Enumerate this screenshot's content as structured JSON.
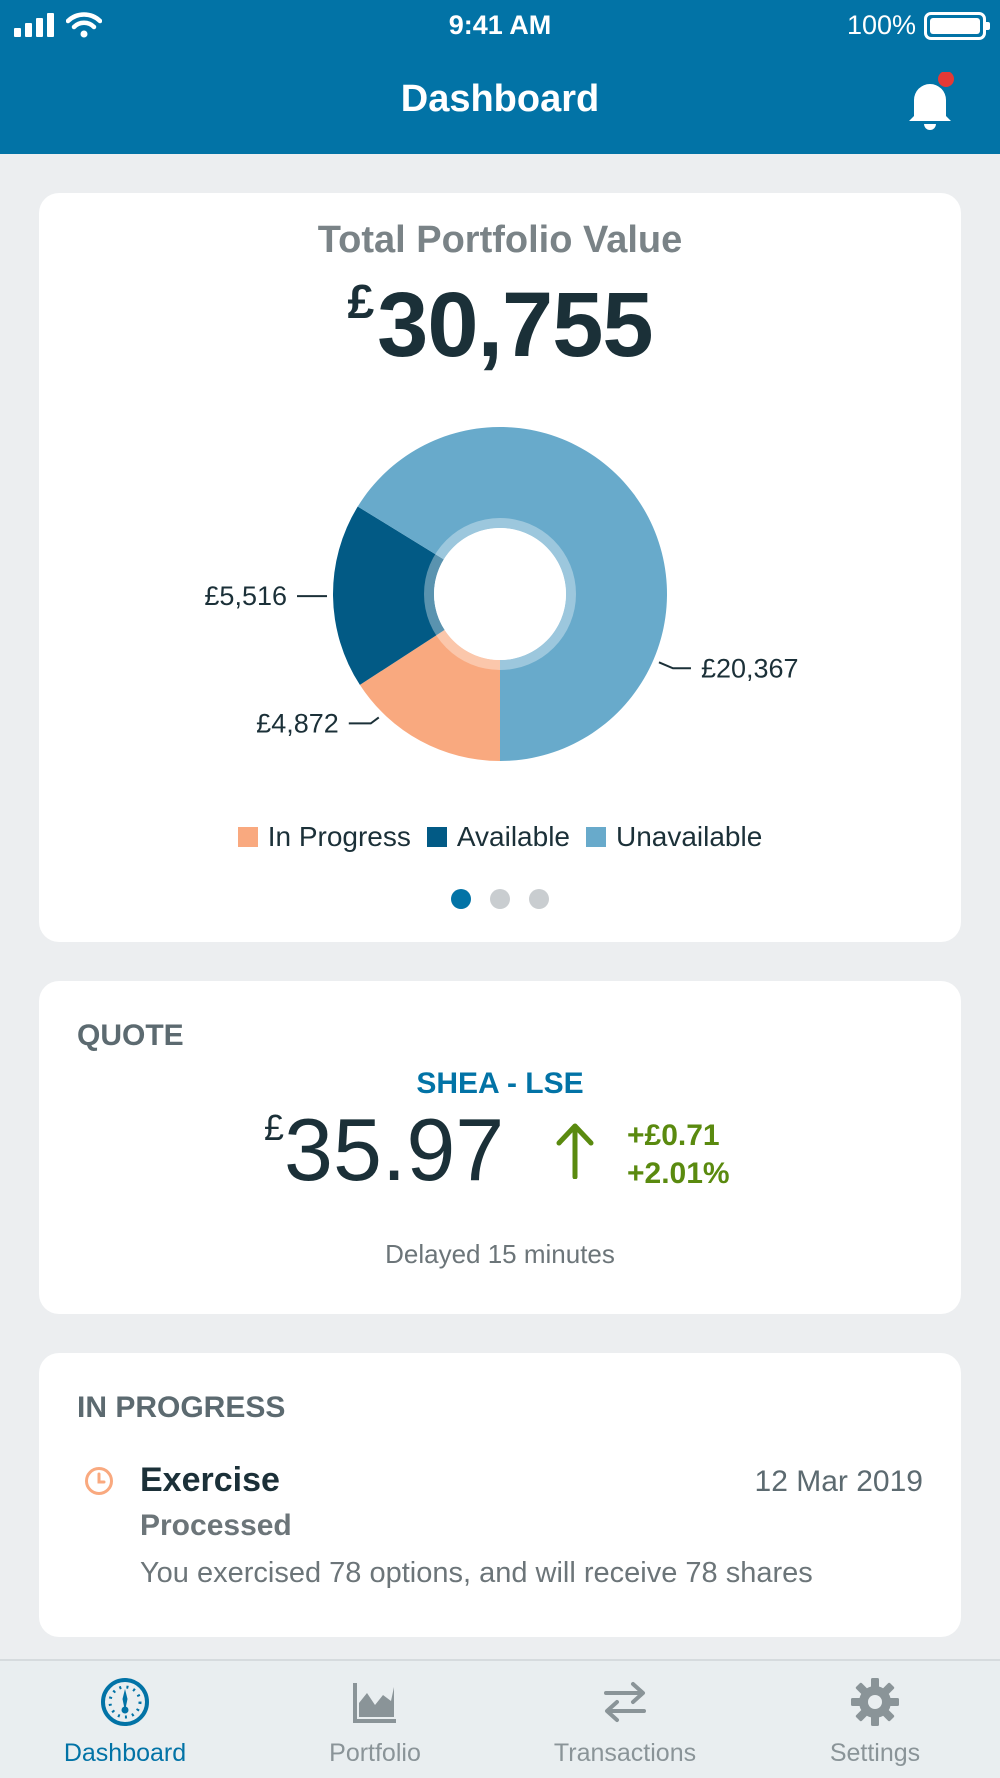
{
  "status_bar": {
    "time": "9:41 AM",
    "battery": "100%"
  },
  "header": {
    "title": "Dashboard"
  },
  "portfolio": {
    "label": "Total Portfolio Value",
    "currency": "£",
    "value": "30,755"
  },
  "chart_data": {
    "type": "pie",
    "categories": [
      "In Progress",
      "Available",
      "Unavailable"
    ],
    "values": [
      4872,
      5516,
      20367
    ],
    "labels": [
      "£4,872",
      "£5,516",
      "£20,367"
    ],
    "colors": [
      "#f9a97f",
      "#025a85",
      "#68aacb"
    ],
    "legend": "bottom"
  },
  "pager": {
    "count": 3,
    "active": 0
  },
  "quote": {
    "title": "QUOTE",
    "symbol": "SHEA - LSE",
    "currency": "£",
    "price": "35.97",
    "change_abs": "+£0.71",
    "change_pct": "+2.01%",
    "delay": "Delayed 15 minutes",
    "trend_color": "#5a8a0f"
  },
  "in_progress": {
    "title": "IN PROGRESS",
    "items": [
      {
        "type": "Exercise",
        "date": "12 Mar 2019",
        "status": "Processed",
        "description": "You exercised 78 options, and will receive 78 shares"
      }
    ]
  },
  "tabs": [
    {
      "label": "Dashboard",
      "icon": "gauge-icon",
      "active": true
    },
    {
      "label": "Portfolio",
      "icon": "area-chart-icon",
      "active": false
    },
    {
      "label": "Transactions",
      "icon": "swap-arrows-icon",
      "active": false
    },
    {
      "label": "Settings",
      "icon": "gear-icon",
      "active": false
    }
  ],
  "colors": {
    "brand": "#0273a6",
    "notification": "#e53935"
  }
}
